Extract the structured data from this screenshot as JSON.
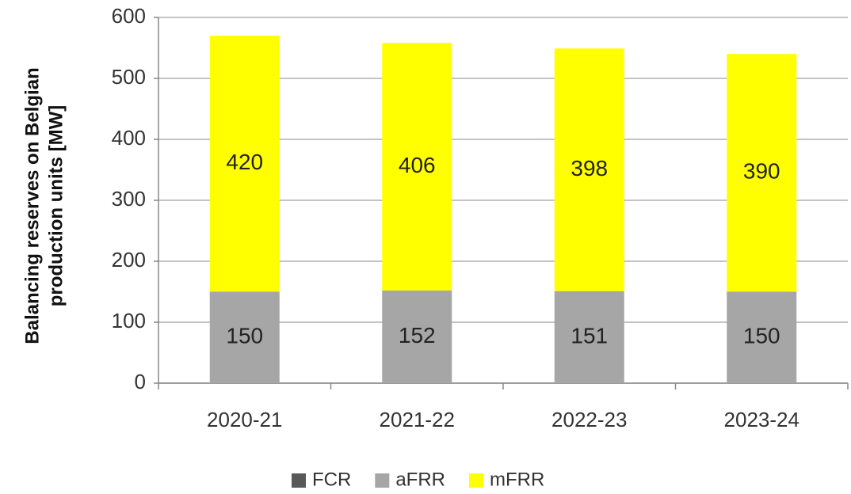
{
  "chart_data": {
    "type": "stacked_bar",
    "y_label": [
      "Balancing reserves on Belgian",
      "production units [MW]"
    ],
    "categories": [
      "2020-21",
      "2021-22",
      "2022-23",
      "2023-24"
    ],
    "series": [
      {
        "name": "FCR",
        "color": "#595959",
        "values": [
          0,
          0,
          0,
          0
        ]
      },
      {
        "name": "aFRR",
        "color": "#a6a6a6",
        "values": [
          150,
          152,
          151,
          150
        ]
      },
      {
        "name": "mFRR",
        "color": "#ffff00",
        "values": [
          420,
          406,
          398,
          390
        ]
      }
    ],
    "ylim": [
      0,
      600
    ],
    "yticks": [
      0,
      100,
      200,
      300,
      400,
      500,
      600
    ],
    "grid": true,
    "legend": "bottom"
  }
}
